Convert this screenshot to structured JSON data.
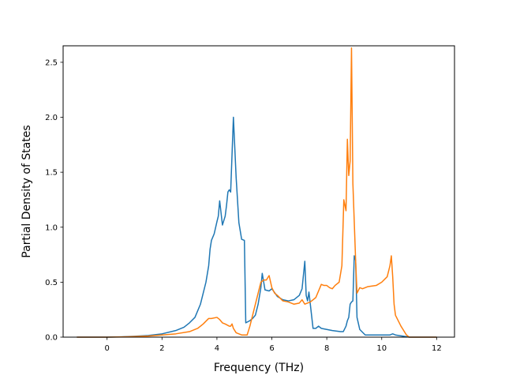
{
  "chart_data": {
    "type": "line",
    "title": "",
    "xlabel": "Frequency (THz)",
    "ylabel": "Partial Density of States",
    "xlim": [
      -1.6,
      12.65
    ],
    "ylim": [
      0,
      2.65
    ],
    "xticks": [
      0,
      2,
      4,
      6,
      8,
      10,
      12
    ],
    "yticks": [
      0.0,
      0.5,
      1.0,
      1.5,
      2.0,
      2.5
    ],
    "xtick_labels": [
      "0",
      "2",
      "4",
      "6",
      "8",
      "10",
      "12"
    ],
    "ytick_labels": [
      "0.0",
      "0.5",
      "1.0",
      "1.5",
      "2.0",
      "2.5"
    ],
    "grid": false,
    "legend": "none",
    "series": [
      {
        "color": "#1f77b4",
        "x": [
          -1.1,
          0.0,
          0.5,
          1.0,
          1.5,
          2.0,
          2.5,
          2.8,
          3.0,
          3.2,
          3.4,
          3.5,
          3.6,
          3.7,
          3.75,
          3.8,
          3.9,
          4.0,
          4.05,
          4.1,
          4.2,
          4.3,
          4.35,
          4.4,
          4.45,
          4.5,
          4.6,
          4.7,
          4.8,
          4.9,
          5.0,
          5.05,
          5.2,
          5.3,
          5.4,
          5.5,
          5.6,
          5.65,
          5.75,
          5.9,
          6.0,
          6.2,
          6.4,
          6.6,
          6.8,
          7.0,
          7.1,
          7.2,
          7.25,
          7.3,
          7.35,
          7.4,
          7.5,
          7.6,
          7.7,
          7.8,
          8.0,
          8.2,
          8.5,
          8.6,
          8.7,
          8.75,
          8.8,
          8.85,
          8.9,
          8.95,
          9.0,
          9.05,
          9.1,
          9.2,
          9.4,
          10.0,
          10.3,
          10.4,
          10.5,
          11.0,
          12.0
        ],
        "y": [
          0.0,
          0.0,
          0.003,
          0.008,
          0.015,
          0.03,
          0.06,
          0.09,
          0.13,
          0.18,
          0.3,
          0.4,
          0.5,
          0.65,
          0.8,
          0.88,
          0.94,
          1.05,
          1.1,
          1.24,
          1.02,
          1.1,
          1.2,
          1.32,
          1.34,
          1.32,
          2.0,
          1.45,
          1.04,
          0.89,
          0.88,
          0.13,
          0.15,
          0.17,
          0.2,
          0.3,
          0.45,
          0.58,
          0.43,
          0.42,
          0.44,
          0.37,
          0.34,
          0.33,
          0.34,
          0.38,
          0.44,
          0.69,
          0.38,
          0.33,
          0.41,
          0.3,
          0.08,
          0.08,
          0.1,
          0.08,
          0.07,
          0.06,
          0.05,
          0.05,
          0.1,
          0.15,
          0.18,
          0.3,
          0.32,
          0.33,
          0.74,
          0.7,
          0.18,
          0.07,
          0.02,
          0.02,
          0.02,
          0.03,
          0.02,
          0.0,
          0.0
        ]
      },
      {
        "color": "#ff7f0e",
        "x": [
          -1.1,
          0.0,
          0.5,
          1.0,
          1.5,
          2.0,
          2.5,
          3.0,
          3.3,
          3.5,
          3.7,
          3.8,
          4.0,
          4.1,
          4.2,
          4.3,
          4.45,
          4.5,
          4.55,
          4.6,
          4.7,
          4.9,
          5.0,
          5.1,
          5.2,
          5.3,
          5.4,
          5.5,
          5.6,
          5.7,
          5.8,
          5.9,
          6.0,
          6.1,
          6.2,
          6.4,
          6.6,
          6.8,
          7.0,
          7.1,
          7.2,
          7.3,
          7.4,
          7.6,
          7.8,
          7.9,
          8.0,
          8.1,
          8.2,
          8.3,
          8.45,
          8.55,
          8.62,
          8.7,
          8.75,
          8.8,
          8.85,
          8.9,
          8.95,
          9.0,
          9.05,
          9.1,
          9.2,
          9.3,
          9.5,
          9.8,
          10.0,
          10.2,
          10.3,
          10.35,
          10.4,
          10.45,
          10.5,
          10.7,
          10.9,
          11.0,
          12.0
        ],
        "y": [
          0.0,
          0.0,
          0.002,
          0.005,
          0.01,
          0.02,
          0.03,
          0.05,
          0.08,
          0.12,
          0.17,
          0.17,
          0.18,
          0.16,
          0.13,
          0.12,
          0.1,
          0.1,
          0.12,
          0.08,
          0.04,
          0.02,
          0.02,
          0.02,
          0.1,
          0.2,
          0.3,
          0.4,
          0.5,
          0.52,
          0.52,
          0.56,
          0.45,
          0.4,
          0.38,
          0.33,
          0.32,
          0.3,
          0.31,
          0.34,
          0.3,
          0.31,
          0.32,
          0.36,
          0.48,
          0.47,
          0.47,
          0.45,
          0.44,
          0.47,
          0.5,
          0.65,
          1.25,
          1.15,
          1.8,
          1.47,
          1.6,
          2.63,
          1.4,
          1.05,
          0.7,
          0.4,
          0.45,
          0.44,
          0.46,
          0.47,
          0.5,
          0.55,
          0.65,
          0.74,
          0.55,
          0.3,
          0.2,
          0.1,
          0.02,
          0.0,
          0.0
        ]
      }
    ]
  }
}
